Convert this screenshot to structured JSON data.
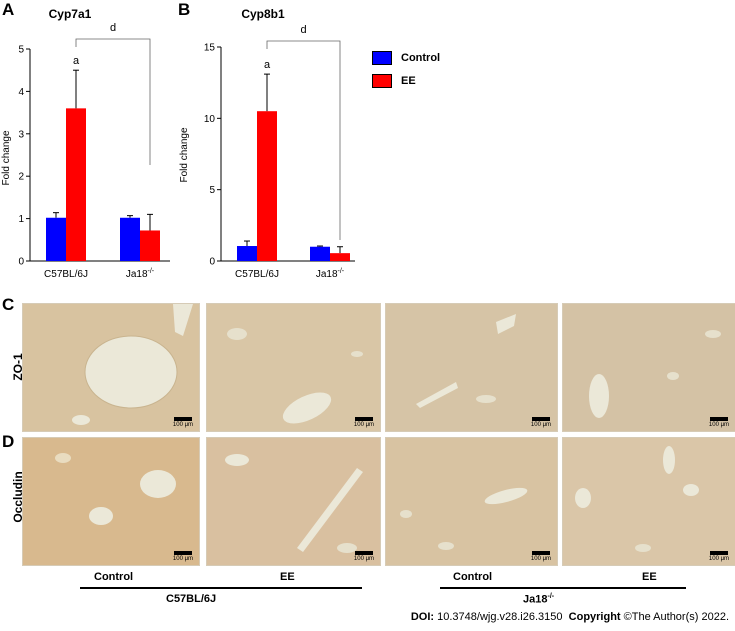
{
  "panels": {
    "A": "A",
    "B": "B",
    "C": "C",
    "D": "D"
  },
  "colors": {
    "control": "#0000ff",
    "ee": "#ff0000"
  },
  "legend": {
    "control_label": "Control",
    "ee_label": "EE"
  },
  "chart_data": [
    {
      "type": "bar",
      "title": "Cyp7a1",
      "ylabel": "Fold change",
      "xlabel": "",
      "categories": [
        "C57BL/6J",
        "Ja18-/-"
      ],
      "ylim": [
        0,
        5
      ],
      "yticks": [
        "0",
        "1",
        "2",
        "3",
        "4",
        "5"
      ],
      "series": [
        {
          "name": "Control",
          "values": [
            1.02,
            1.02
          ],
          "errors": [
            0.12,
            0.05
          ]
        },
        {
          "name": "EE",
          "values": [
            3.6,
            0.72
          ],
          "errors": [
            0.9,
            0.38
          ]
        }
      ],
      "annotations": {
        "significance_a": "a",
        "significance_d": "d"
      }
    },
    {
      "type": "bar",
      "title": "Cyp8b1",
      "ylabel": "Fold change",
      "xlabel": "",
      "categories": [
        "C57BL/6J",
        "Ja18-/-"
      ],
      "ylim": [
        0,
        15
      ],
      "yticks": [
        "0",
        "5",
        "10",
        "15"
      ],
      "series": [
        {
          "name": "Control",
          "values": [
            1.05,
            1.0
          ],
          "errors": [
            0.35,
            0.05
          ]
        },
        {
          "name": "EE",
          "values": [
            10.5,
            0.55
          ],
          "errors": [
            2.6,
            0.45
          ]
        }
      ],
      "annotations": {
        "significance_a": "a",
        "significance_d": "d"
      }
    }
  ],
  "micrographs": {
    "row_labels": {
      "zo1": "ZO-1",
      "occludin": "Occludin"
    },
    "scale_label": "100 μm"
  },
  "bottom_labels": {
    "control_1": "Control",
    "ee_1": "EE",
    "control_2": "Control",
    "ee_2": "EE",
    "group_1": "C57BL/6J",
    "group_2_base": "Ja18",
    "group_2_sup": "-/-"
  },
  "footer": {
    "doi_label": "DOI:",
    "doi_value": "10.3748/wjg.v28.i26.3150",
    "copyright_label": "Copyright",
    "copyright_value": "©The Author(s) 2022."
  }
}
